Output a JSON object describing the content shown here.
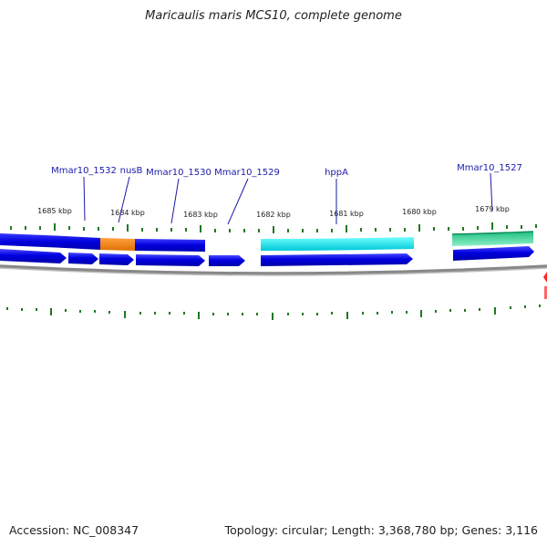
{
  "title": "Maricaulis maris MCS10, complete genome",
  "footer": {
    "accession": "Accession: NC_008347",
    "stats": "Topology: circular; Length: 3,368,780 bp; Genes: 3,116"
  },
  "scale": {
    "unit": "kbp",
    "labels": [
      "1685 kbp",
      "1684 kbp",
      "1683 kbp",
      "1682 kbp",
      "1681 kbp",
      "1680 kbp",
      "1679 kbp"
    ]
  },
  "gene_labels": [
    "Mmar10_1532",
    "nusB",
    "Mmar10_1530",
    "Mmar10_1529",
    "hppA",
    "Mmar10_1527"
  ],
  "colors": {
    "cds_blue": "#0000dd",
    "nusB_orange": "#ff8c1a",
    "hppA_cyan": "#00e5ee",
    "gene_1527_green": "#22cc88",
    "tick_green": "#227722",
    "label_blue": "#1a1aaa",
    "backbone_gray": "#888888",
    "marker_red": "#ff2222"
  }
}
